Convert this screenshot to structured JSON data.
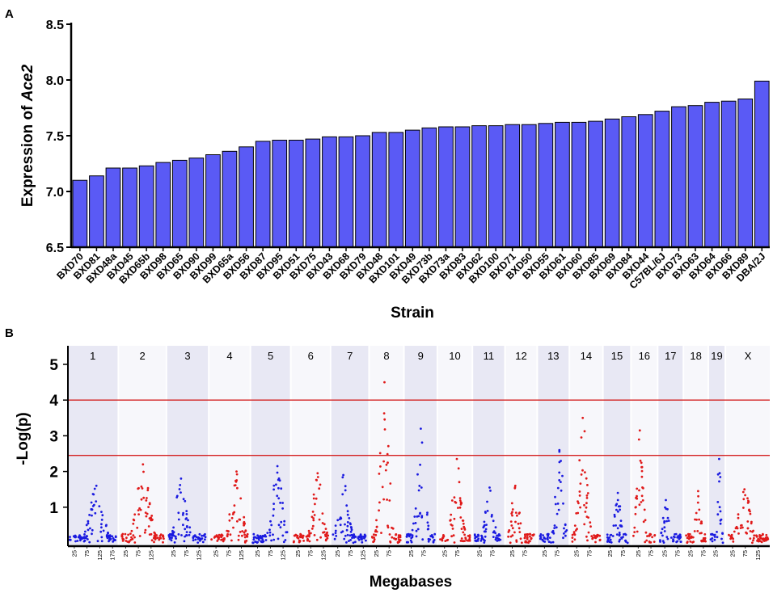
{
  "panel_labels": {
    "a": "A",
    "b": "B"
  },
  "colors": {
    "bar_fill": "#5a5af5",
    "bar_stroke": "#000000",
    "odd_chr": "#1a1ae0",
    "even_chr": "#e01a1a",
    "threshold": "#d42020",
    "band_shade": "#e8e8f4"
  },
  "chart_data": [
    {
      "type": "bar",
      "title": "",
      "xlabel": "Strain",
      "ylabel_prefix": "Expression of ",
      "ylabel_gene": "Ace2",
      "ylim": [
        6.5,
        8.5
      ],
      "yticks": [
        6.5,
        7.0,
        7.5,
        8.0,
        8.5
      ],
      "ytick_labels": [
        "6.5",
        "7.0",
        "7.5",
        "8.0",
        "8.5"
      ],
      "categories": [
        "BXD70",
        "BXD81",
        "BXD48a",
        "BXD45",
        "BXD65b",
        "BXD98",
        "BXD65",
        "BXD90",
        "BXD99",
        "BXD65a",
        "BXD56",
        "BXD87",
        "BXD95",
        "BXD51",
        "BXD75",
        "BXD43",
        "BXD68",
        "BXD79",
        "BXD48",
        "BXD101",
        "BXD49",
        "BXD73b",
        "BXD73a",
        "BXD83",
        "BXD62",
        "BXD100",
        "BXD71",
        "BXD50",
        "BXD55",
        "BXD61",
        "BXD60",
        "BXD85",
        "BXD69",
        "BXD84",
        "BXD44",
        "C57BL/6J",
        "BXD73",
        "BXD63",
        "BXD64",
        "BXD66",
        "BXD89",
        "DBA/2J"
      ],
      "values": [
        7.1,
        7.14,
        7.21,
        7.21,
        7.23,
        7.26,
        7.28,
        7.3,
        7.33,
        7.36,
        7.4,
        7.45,
        7.46,
        7.46,
        7.47,
        7.49,
        7.49,
        7.5,
        7.53,
        7.53,
        7.55,
        7.57,
        7.58,
        7.58,
        7.59,
        7.59,
        7.6,
        7.6,
        7.61,
        7.62,
        7.62,
        7.63,
        7.65,
        7.67,
        7.69,
        7.72,
        7.76,
        7.77,
        7.8,
        7.81,
        7.83,
        7.99
      ]
    },
    {
      "type": "scatter",
      "subtype": "manhattan",
      "xlabel": "Megabases",
      "ylabel": "-Log(p)",
      "ylim": [
        0,
        5.6
      ],
      "yticks": [
        1,
        2,
        3,
        4,
        5
      ],
      "ytick_labels": [
        "1",
        "2",
        "3",
        "4",
        "5"
      ],
      "thresholds": [
        4.0,
        2.45
      ],
      "chromosomes": [
        "1",
        "2",
        "3",
        "4",
        "5",
        "6",
        "7",
        "8",
        "9",
        "10",
        "11",
        "12",
        "13",
        "14",
        "15",
        "16",
        "17",
        "18",
        "19",
        "X"
      ],
      "chr_lengths_mb": [
        195,
        182,
        160,
        157,
        152,
        150,
        145,
        130,
        125,
        131,
        122,
        120,
        120,
        125,
        104,
        98,
        95,
        91,
        61,
        171
      ],
      "mb_tick_labels": [
        "25",
        "75",
        "125",
        "175"
      ],
      "peaks": [
        {
          "chr": "1",
          "max": 1.6
        },
        {
          "chr": "2",
          "max": 2.2
        },
        {
          "chr": "3",
          "max": 1.8
        },
        {
          "chr": "4",
          "max": 2.0
        },
        {
          "chr": "5",
          "max": 2.15
        },
        {
          "chr": "6",
          "max": 1.95
        },
        {
          "chr": "7",
          "max": 1.9
        },
        {
          "chr": "8",
          "max": 4.5
        },
        {
          "chr": "9",
          "max": 3.2
        },
        {
          "chr": "10",
          "max": 2.35
        },
        {
          "chr": "11",
          "max": 1.55
        },
        {
          "chr": "12",
          "max": 1.6
        },
        {
          "chr": "13",
          "max": 2.6
        },
        {
          "chr": "14",
          "max": 3.5
        },
        {
          "chr": "15",
          "max": 1.4
        },
        {
          "chr": "16",
          "max": 3.15
        },
        {
          "chr": "17",
          "max": 1.2
        },
        {
          "chr": "18",
          "max": 1.45
        },
        {
          "chr": "19",
          "max": 2.35
        },
        {
          "chr": "X",
          "max": 1.5
        }
      ]
    }
  ]
}
